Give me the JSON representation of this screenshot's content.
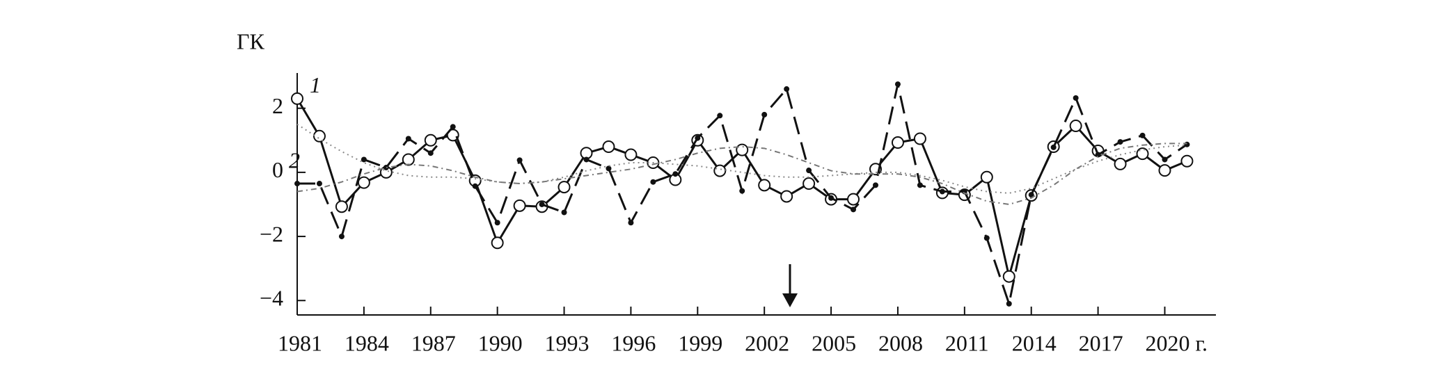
{
  "chart_data": {
    "type": "line",
    "y_label": "ГК",
    "x": [
      1981,
      1982,
      1983,
      1984,
      1985,
      1986,
      1987,
      1988,
      1989,
      1990,
      1991,
      1992,
      1993,
      1994,
      1995,
      1996,
      1997,
      1998,
      1999,
      2000,
      2001,
      2002,
      2003,
      2004,
      2005,
      2006,
      2007,
      2008,
      2009,
      2010,
      2011,
      2012,
      2013,
      2014,
      2015,
      2016,
      2017,
      2018,
      2019,
      2020,
      2021
    ],
    "series": [
      {
        "name": "1",
        "color": "#111111",
        "dash": "solid",
        "marker": "open-circle",
        "values": [
          2.3,
          1.13,
          -1.07,
          -0.32,
          0.0,
          0.4,
          1.0,
          1.16,
          -0.26,
          -2.2,
          -1.04,
          -1.07,
          -0.46,
          0.6,
          0.8,
          0.55,
          0.3,
          -0.23,
          1.0,
          0.05,
          0.7,
          -0.4,
          -0.75,
          -0.35,
          -0.84,
          -0.84,
          0.1,
          0.93,
          1.05,
          -0.64,
          -0.7,
          -0.15,
          -3.25,
          -0.72,
          0.8,
          1.45,
          0.67,
          0.26,
          0.58,
          0.06,
          0.35
        ]
      },
      {
        "name": "2",
        "color": "#111111",
        "dash": "dashed",
        "marker": "dot",
        "values": [
          -0.35,
          -0.35,
          -2.0,
          0.4,
          0.15,
          1.05,
          0.6,
          1.42,
          -0.43,
          -1.57,
          0.38,
          -1.0,
          -1.25,
          0.4,
          0.12,
          -1.57,
          -0.3,
          -0.05,
          1.07,
          1.77,
          -0.58,
          1.8,
          2.6,
          0.06,
          -0.8,
          -1.16,
          -0.4,
          2.75,
          -0.4,
          -0.6,
          -0.6,
          -2.05,
          -4.1,
          -0.7,
          0.78,
          2.32,
          0.55,
          0.95,
          1.15,
          0.4,
          0.87
        ]
      },
      {
        "color": "#888888",
        "dash": "dotted",
        "marker": "none",
        "values": [
          1.5,
          1.05,
          0.65,
          0.3,
          0.05,
          -0.1,
          -0.15,
          -0.15,
          -0.2,
          -0.3,
          -0.35,
          -0.3,
          -0.15,
          0.05,
          0.2,
          0.3,
          0.3,
          0.25,
          0.2,
          0.1,
          0.0,
          -0.1,
          -0.15,
          -0.15,
          -0.1,
          -0.05,
          0.0,
          0.0,
          -0.1,
          -0.25,
          -0.45,
          -0.6,
          -0.65,
          -0.5,
          -0.2,
          0.1,
          0.35,
          0.55,
          0.7,
          0.8,
          0.85
        ]
      },
      {
        "color": "#777777",
        "dash": "dash-dot",
        "marker": "none",
        "values": [
          -0.6,
          -0.5,
          -0.3,
          -0.05,
          0.15,
          0.25,
          0.2,
          0.05,
          -0.15,
          -0.3,
          -0.35,
          -0.3,
          -0.2,
          -0.1,
          0.0,
          0.1,
          0.25,
          0.4,
          0.6,
          0.75,
          0.8,
          0.75,
          0.55,
          0.3,
          0.05,
          -0.05,
          -0.05,
          -0.05,
          -0.15,
          -0.35,
          -0.65,
          -0.9,
          -1.0,
          -0.8,
          -0.4,
          0.1,
          0.5,
          0.75,
          0.85,
          0.9,
          0.9
        ]
      }
    ],
    "xlim": [
      1981,
      2022.3
    ],
    "xticks": [
      1981,
      1984,
      1987,
      1990,
      1993,
      1996,
      1999,
      2002,
      2005,
      2008,
      2011,
      2014,
      2017,
      {
        "value": 2020,
        "label": "2020 г."
      }
    ],
    "ylim": [
      -4.45,
      3.1
    ],
    "yticks": [
      {
        "value": -4,
        "label": "−4"
      },
      {
        "value": -2,
        "label": "−2"
      },
      0,
      2
    ],
    "grid": false
  }
}
